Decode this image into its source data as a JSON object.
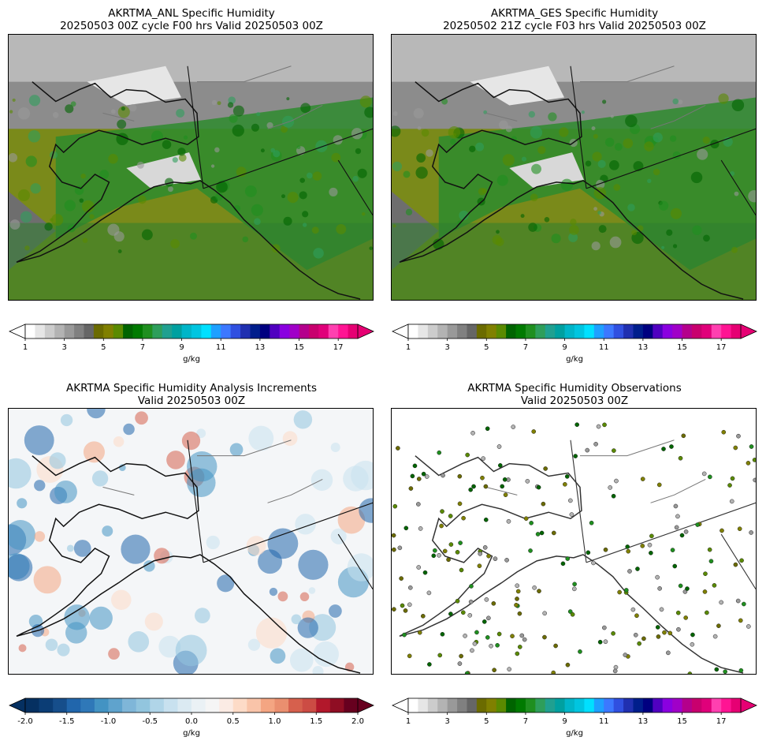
{
  "panels": [
    {
      "title_line1": "AKRTMA_ANL Specific Humidity",
      "title_line2": "20250503 00Z cycle F00 hrs Valid 20250503 00Z",
      "kind": "field"
    },
    {
      "title_line1": "AKRTMA_GES Specific Humidity",
      "title_line2": "20250502 21Z cycle F03 hrs Valid 20250503 00Z",
      "kind": "field"
    },
    {
      "title_line1": "AKRTMA Specific Humidity Analysis Increments",
      "title_line2": "Valid 20250503 00Z",
      "kind": "increment"
    },
    {
      "title_line1": "AKRTMA Specific Humidity Observations",
      "title_line2": "Valid 20250503 00Z",
      "kind": "obs"
    }
  ],
  "colorbars": {
    "humidity": {
      "units": "g/kg",
      "ticks": [
        "1",
        "3",
        "5",
        "7",
        "9",
        "11",
        "13",
        "15",
        "17"
      ],
      "tick_values": [
        1,
        3,
        5,
        7,
        9,
        11,
        13,
        15,
        17
      ],
      "range": [
        1,
        18
      ],
      "colors": [
        "#ffffff",
        "#e6e6e6",
        "#cccccc",
        "#b3b3b3",
        "#999999",
        "#808080",
        "#666666",
        "#6b6b00",
        "#808000",
        "#5a8a00",
        "#006400",
        "#007a00",
        "#1f8f1f",
        "#2e9e5b",
        "#20a090",
        "#00a0a0",
        "#00b5c8",
        "#00c5e0",
        "#00e0ff",
        "#1ea0ff",
        "#3c78ff",
        "#3050e0",
        "#2030b0",
        "#001e8c",
        "#000080",
        "#5000c0",
        "#8a00e0",
        "#a000c8",
        "#b4008c",
        "#c8006e",
        "#e0007a",
        "#ff40b0",
        "#ff1493",
        "#e60073"
      ]
    },
    "increment": {
      "units": "g/kg",
      "ticks": [
        "-2.0",
        "-1.5",
        "-1.0",
        "-0.5",
        "0.0",
        "0.5",
        "1.0",
        "1.5",
        "2.0"
      ],
      "tick_values": [
        -2.0,
        -1.5,
        -1.0,
        -0.5,
        0.0,
        0.5,
        1.0,
        1.5,
        2.0
      ],
      "range": [
        -2.0,
        2.0
      ],
      "colors": [
        "#053061",
        "#0b3d75",
        "#164e8b",
        "#2166ac",
        "#2f78b8",
        "#4393c3",
        "#5fa3cd",
        "#7fb6d8",
        "#92c5de",
        "#b0d5e8",
        "#c8e1ef",
        "#dbeaf2",
        "#eaf1f5",
        "#f5f5f5",
        "#fbebe4",
        "#fddbc7",
        "#f9c4a9",
        "#f4a582",
        "#ea8f6f",
        "#d6604d",
        "#cc4c44",
        "#b2182b",
        "#8f0d23",
        "#67001f"
      ]
    }
  },
  "map_colors": {
    "land_dry": "#b8b8b8",
    "land_moist": "#2e8b2e",
    "ocean": "#7a8a1a",
    "increment_bg": "#f4f6f8"
  }
}
